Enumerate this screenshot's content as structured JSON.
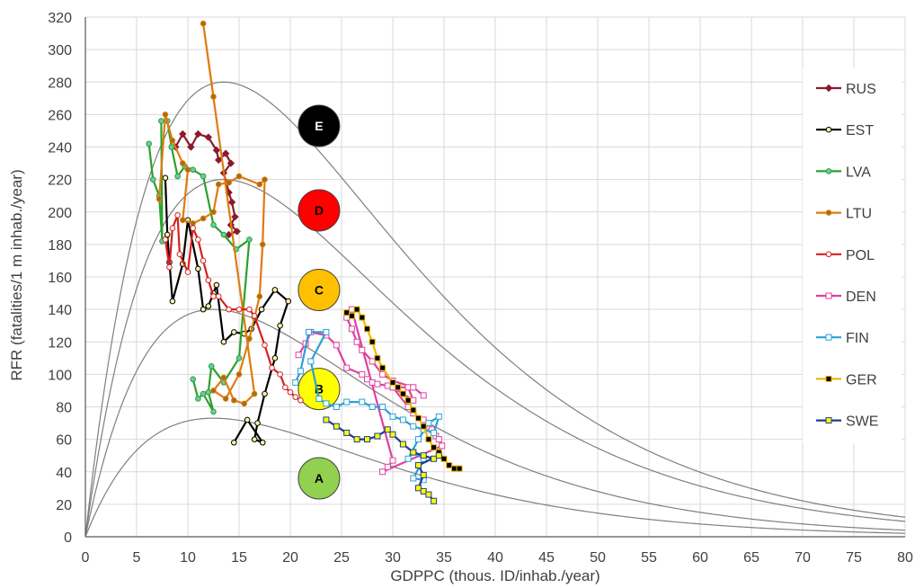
{
  "chart_data": {
    "type": "line",
    "title": "",
    "xlabel": "GDPPC  (thous. ID/inhab./year)",
    "ylabel": "RFR (fatalities/1 m inhab./year)",
    "xlim": [
      0,
      80
    ],
    "ylim": [
      0,
      320
    ],
    "x_ticks": [
      "0",
      "5",
      "10",
      "15",
      "20",
      "25",
      "30",
      "35",
      "40",
      "45",
      "50",
      "55",
      "60",
      "65",
      "70",
      "75",
      "80"
    ],
    "y_ticks": [
      "0",
      "20",
      "40",
      "60",
      "80",
      "100",
      "120",
      "140",
      "160",
      "180",
      "200",
      "220",
      "240",
      "260",
      "280",
      "300",
      "320"
    ],
    "grid": "vertical and horizontal",
    "legend_position": "right",
    "curves": [
      {
        "zone_below": "A",
        "peak_x": 12.5,
        "peak_y": 73
      },
      {
        "zone_below": "B",
        "peak_x": 12.5,
        "peak_y": 140
      },
      {
        "zone_below": "C",
        "peak_x": 13.5,
        "peak_y": 220
      },
      {
        "zone_below": "D",
        "peak_x": 13.5,
        "peak_y": 280
      }
    ],
    "zones": [
      {
        "label": "A",
        "x": 22.8,
        "y": 36,
        "color": "#92d050",
        "text_color": "#000000"
      },
      {
        "label": "B",
        "x": 22.8,
        "y": 91,
        "color": "#ffff00",
        "text_color": "#000000"
      },
      {
        "label": "C",
        "x": 22.8,
        "y": 152,
        "color": "#ffc000",
        "text_color": "#000000"
      },
      {
        "label": "D",
        "x": 22.8,
        "y": 201,
        "color": "#ff0000",
        "text_color": "#000000"
      },
      {
        "label": "E",
        "x": 22.8,
        "y": 253,
        "color": "#000000",
        "text_color": "#ffffff"
      }
    ],
    "series": [
      {
        "name": "RUS",
        "color": "#8b1a2b",
        "marker": "diamond",
        "marker_fill": "#8b1a2b",
        "points": [
          [
            8.8,
            240
          ],
          [
            9.5,
            248
          ],
          [
            10.3,
            240
          ],
          [
            11,
            248
          ],
          [
            12,
            246
          ],
          [
            12.8,
            238
          ],
          [
            13,
            232
          ],
          [
            13.7,
            236
          ],
          [
            14.2,
            230
          ],
          [
            13.5,
            224
          ],
          [
            14,
            212
          ],
          [
            14.3,
            206
          ],
          [
            14.6,
            197
          ],
          [
            14.2,
            192
          ],
          [
            14.8,
            188
          ],
          [
            14,
            186
          ]
        ]
      },
      {
        "name": "EST",
        "color": "#000000",
        "marker": "circle",
        "marker_fill": "#fff2a0",
        "points": [
          [
            7.8,
            221
          ],
          [
            8,
            186
          ],
          [
            8.2,
            169
          ],
          [
            8.5,
            145
          ],
          [
            9.5,
            168
          ],
          [
            10,
            195
          ],
          [
            11,
            165
          ],
          [
            11.5,
            140
          ],
          [
            12,
            142
          ],
          [
            12.5,
            150
          ],
          [
            12.8,
            155
          ],
          [
            13.5,
            120
          ],
          [
            14.5,
            126
          ],
          [
            15.5,
            125
          ],
          [
            16.2,
            128
          ],
          [
            17.2,
            140
          ],
          [
            18.5,
            152
          ],
          [
            19.8,
            145
          ],
          [
            19,
            130
          ],
          [
            18.5,
            110
          ],
          [
            17.5,
            88
          ],
          [
            16.8,
            70
          ],
          [
            16.5,
            60
          ],
          [
            17.3,
            58
          ],
          [
            15.8,
            72
          ],
          [
            14.5,
            58
          ]
        ]
      },
      {
        "name": "LVA",
        "color": "#2ca02c",
        "marker": "circle",
        "marker_fill": "#66cdaa",
        "points": [
          [
            6.2,
            242
          ],
          [
            6.6,
            220
          ],
          [
            7.2,
            210
          ],
          [
            7.5,
            182
          ],
          [
            7.4,
            256
          ],
          [
            8,
            256
          ],
          [
            8.4,
            240
          ],
          [
            9,
            222
          ],
          [
            9.7,
            228
          ],
          [
            10.5,
            226
          ],
          [
            11.5,
            222
          ],
          [
            12.5,
            192
          ],
          [
            13.5,
            186
          ],
          [
            14.7,
            177
          ],
          [
            16,
            183
          ],
          [
            15,
            110
          ],
          [
            13.5,
            95
          ],
          [
            12.3,
            105
          ],
          [
            12,
            89
          ],
          [
            12.5,
            77
          ],
          [
            11.5,
            88
          ],
          [
            11,
            85
          ],
          [
            10.5,
            97
          ]
        ]
      },
      {
        "name": "LTU",
        "color": "#e07a10",
        "marker": "circle",
        "marker_fill": "#a07010",
        "points": [
          [
            7.2,
            208
          ],
          [
            7.8,
            260
          ],
          [
            8.5,
            244
          ],
          [
            9.5,
            230
          ],
          [
            10,
            226
          ],
          [
            9.5,
            195
          ],
          [
            10.5,
            193
          ],
          [
            11.5,
            196
          ],
          [
            12.5,
            200
          ],
          [
            13,
            217
          ],
          [
            14,
            218
          ],
          [
            15,
            222
          ],
          [
            17,
            217
          ],
          [
            17.5,
            220
          ],
          [
            17.3,
            180
          ],
          [
            17,
            148
          ],
          [
            16.5,
            135
          ],
          [
            16,
            122
          ],
          [
            15,
            100
          ],
          [
            13.7,
            85
          ],
          [
            12.5,
            90
          ],
          [
            13.5,
            98
          ],
          [
            14.5,
            84
          ],
          [
            15.5,
            82
          ],
          [
            16.5,
            88
          ],
          [
            11.5,
            316
          ],
          [
            12.5,
            271
          ]
        ]
      },
      {
        "name": "POL",
        "color": "#d62020",
        "marker": "circle",
        "marker_fill": "#ffffff",
        "points": [
          [
            7.8,
            183
          ],
          [
            8.2,
            166
          ],
          [
            8.5,
            190
          ],
          [
            9,
            198
          ],
          [
            9.2,
            174
          ],
          [
            10,
            163
          ],
          [
            10.5,
            190
          ],
          [
            11,
            183
          ],
          [
            11.5,
            170
          ],
          [
            12,
            158
          ],
          [
            12.5,
            148
          ],
          [
            13,
            148
          ],
          [
            14,
            140
          ],
          [
            15,
            140
          ],
          [
            16,
            140
          ],
          [
            16.5,
            136
          ],
          [
            17.5,
            118
          ],
          [
            18.2,
            104
          ],
          [
            19,
            100
          ],
          [
            19.5,
            92
          ],
          [
            20,
            89
          ],
          [
            20.5,
            86
          ],
          [
            21,
            84
          ]
        ]
      },
      {
        "name": "DEN",
        "color": "#e040a0",
        "marker": "square",
        "marker_fill": "#ffffff",
        "points": [
          [
            20.8,
            112
          ],
          [
            21.5,
            119
          ],
          [
            22,
            126
          ],
          [
            23.5,
            124
          ],
          [
            24.5,
            118
          ],
          [
            25.5,
            104
          ],
          [
            27,
            100
          ],
          [
            27.5,
            97
          ],
          [
            28,
            95
          ],
          [
            28.5,
            94
          ],
          [
            29.5,
            93
          ],
          [
            30,
            92
          ],
          [
            31.5,
            92
          ],
          [
            32,
            84
          ],
          [
            31,
            88
          ],
          [
            30,
            92
          ],
          [
            31.5,
            80
          ],
          [
            32,
            76
          ],
          [
            33,
            72
          ],
          [
            33.5,
            68
          ],
          [
            33.8,
            66
          ],
          [
            34.2,
            62
          ],
          [
            34.5,
            60
          ],
          [
            34.8,
            56
          ],
          [
            29,
            40
          ],
          [
            29.5,
            43
          ],
          [
            30,
            47
          ],
          [
            26,
            140
          ],
          [
            25.5,
            135
          ],
          [
            26,
            128
          ],
          [
            26.5,
            120
          ],
          [
            27,
            115
          ],
          [
            28,
            108
          ],
          [
            29,
            100
          ],
          [
            30,
            96
          ],
          [
            32,
            92
          ],
          [
            33,
            87
          ]
        ]
      },
      {
        "name": "FIN",
        "color": "#2aa0d8",
        "marker": "square",
        "marker_fill": "#ffffff",
        "points": [
          [
            20.5,
            95
          ],
          [
            21,
            102
          ],
          [
            21.8,
            126
          ],
          [
            23.5,
            126
          ],
          [
            22,
            108
          ],
          [
            22.8,
            85
          ],
          [
            23.5,
            82
          ],
          [
            24.5,
            80
          ],
          [
            25.5,
            83
          ],
          [
            27,
            83
          ],
          [
            28,
            80
          ],
          [
            29,
            80
          ],
          [
            30,
            74
          ],
          [
            31,
            72
          ],
          [
            32,
            68
          ],
          [
            33,
            66
          ],
          [
            34,
            64
          ],
          [
            34.5,
            74
          ],
          [
            33.5,
            70
          ],
          [
            32.5,
            60
          ],
          [
            31.5,
            48
          ],
          [
            32,
            52
          ],
          [
            33,
            48
          ],
          [
            32,
            36
          ],
          [
            33,
            35
          ]
        ]
      },
      {
        "name": "GER",
        "color": "#f0b800",
        "marker": "square",
        "marker_fill": "#000000",
        "points": [
          [
            25.5,
            138
          ],
          [
            26,
            136
          ],
          [
            26.5,
            140
          ],
          [
            27,
            135
          ],
          [
            27.5,
            128
          ],
          [
            28,
            120
          ],
          [
            28.5,
            110
          ],
          [
            29,
            104
          ],
          [
            30,
            95
          ],
          [
            30.5,
            92
          ],
          [
            31,
            88
          ],
          [
            31.5,
            84
          ],
          [
            32,
            78
          ],
          [
            32.5,
            73
          ],
          [
            33,
            68
          ],
          [
            33.5,
            60
          ],
          [
            34,
            55
          ],
          [
            34.5,
            52
          ],
          [
            35,
            48
          ],
          [
            35.5,
            44
          ],
          [
            36,
            42
          ],
          [
            36.5,
            42
          ]
        ]
      },
      {
        "name": "SWE",
        "color": "#1f3a93",
        "marker": "square",
        "marker_fill": "#ffff00",
        "points": [
          [
            23.5,
            72
          ],
          [
            24.5,
            68
          ],
          [
            25.5,
            64
          ],
          [
            26.5,
            60
          ],
          [
            27.5,
            60
          ],
          [
            28.5,
            62
          ],
          [
            29.5,
            66
          ],
          [
            30,
            63
          ],
          [
            31,
            57
          ],
          [
            32,
            52
          ],
          [
            33,
            50
          ],
          [
            34,
            48
          ],
          [
            34.5,
            50
          ],
          [
            32.5,
            44
          ],
          [
            33,
            38
          ],
          [
            32.5,
            30
          ],
          [
            33,
            28
          ],
          [
            33.5,
            26
          ],
          [
            34,
            22
          ]
        ]
      }
    ]
  }
}
